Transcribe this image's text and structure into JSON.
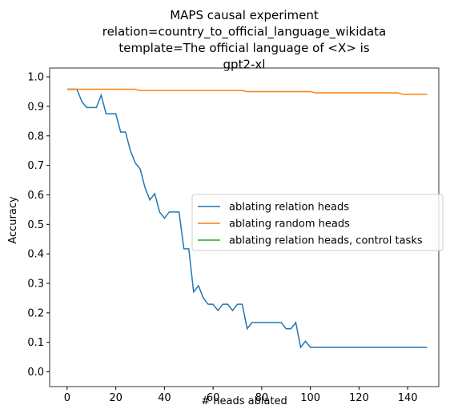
{
  "chart_data": {
    "type": "line",
    "title": [
      "MAPS causal experiment",
      "relation=country_to_official_language_wikidata",
      "template=The official language of <X> is",
      "gpt2-xl"
    ],
    "x_label": "# heads ablated",
    "y_label": "Accuracy",
    "x": [
      0,
      2,
      4,
      6,
      8,
      10,
      12,
      14,
      16,
      18,
      20,
      22,
      24,
      26,
      28,
      30,
      32,
      34,
      36,
      38,
      40,
      42,
      44,
      46,
      48,
      50,
      52,
      54,
      56,
      58,
      60,
      62,
      64,
      66,
      68,
      70,
      72,
      74,
      76,
      78,
      80,
      82,
      84,
      86,
      88,
      90,
      92,
      94,
      96,
      98,
      100,
      102,
      104,
      106,
      108,
      110,
      112,
      114,
      116,
      118,
      120,
      122,
      124,
      126,
      128,
      130,
      132,
      134,
      136,
      138,
      140,
      142,
      144,
      146,
      148
    ],
    "series": [
      {
        "name": "ablating relation heads",
        "color": "#1f77b4",
        "values": [
          0.958,
          0.958,
          0.958,
          0.917,
          0.896,
          0.896,
          0.896,
          0.938,
          0.875,
          0.875,
          0.875,
          0.813,
          0.813,
          0.75,
          0.708,
          0.688,
          0.625,
          0.583,
          0.604,
          0.542,
          0.521,
          0.542,
          0.542,
          0.542,
          0.417,
          0.417,
          0.271,
          0.292,
          0.25,
          0.229,
          0.229,
          0.208,
          0.229,
          0.229,
          0.208,
          0.229,
          0.229,
          0.146,
          0.167,
          0.167,
          0.167,
          0.167,
          0.167,
          0.167,
          0.167,
          0.146,
          0.146,
          0.167,
          0.083,
          0.104,
          0.083,
          0.083,
          0.083,
          0.083,
          0.083,
          0.083,
          0.083,
          0.083,
          0.083,
          0.083,
          0.083,
          0.083,
          0.083,
          0.083,
          0.083,
          0.083,
          0.083,
          0.083,
          0.083,
          0.083,
          0.083,
          0.083,
          0.083,
          0.083,
          0.083
        ]
      },
      {
        "name": "ablating random heads",
        "color": "#ff7f0e",
        "values": [
          0.958,
          0.958,
          0.958,
          0.958,
          0.958,
          0.958,
          0.958,
          0.958,
          0.958,
          0.958,
          0.958,
          0.958,
          0.958,
          0.958,
          0.958,
          0.954,
          0.954,
          0.954,
          0.954,
          0.954,
          0.954,
          0.954,
          0.954,
          0.954,
          0.954,
          0.954,
          0.954,
          0.954,
          0.954,
          0.954,
          0.954,
          0.954,
          0.954,
          0.954,
          0.954,
          0.954,
          0.954,
          0.95,
          0.95,
          0.95,
          0.95,
          0.95,
          0.95,
          0.95,
          0.95,
          0.95,
          0.95,
          0.95,
          0.95,
          0.95,
          0.95,
          0.946,
          0.946,
          0.946,
          0.946,
          0.946,
          0.946,
          0.946,
          0.946,
          0.946,
          0.946,
          0.946,
          0.946,
          0.946,
          0.946,
          0.946,
          0.946,
          0.946,
          0.946,
          0.941,
          0.941,
          0.941,
          0.941,
          0.941,
          0.941
        ]
      },
      {
        "name": "ablating relation heads, control tasks",
        "color": "#2ca02c",
        "values": [
          null,
          null,
          null,
          null,
          null,
          null,
          null,
          null,
          null,
          null,
          null,
          null,
          null,
          null,
          null,
          null,
          null,
          null,
          null,
          null,
          null,
          null,
          null,
          null,
          null,
          null,
          null,
          null,
          null,
          null,
          null,
          null,
          null,
          null,
          null,
          null,
          null,
          null,
          null,
          null,
          null,
          null,
          null,
          null,
          null,
          null,
          null,
          null,
          null,
          null,
          null,
          null,
          null,
          null,
          null,
          null,
          null,
          null,
          null,
          null,
          null,
          null,
          null,
          null,
          null,
          null,
          null,
          null,
          null,
          null,
          null,
          null,
          null,
          null,
          null
        ]
      }
    ],
    "xlim": [
      -7.2,
      152.8
    ],
    "ylim": [
      -0.05,
      1.03
    ],
    "xticks": [
      0,
      20,
      40,
      60,
      80,
      100,
      120,
      140
    ],
    "yticks": [
      {
        "value": 0,
        "label": "0.0"
      },
      {
        "value": 0.1,
        "label": "0.1"
      },
      {
        "value": 0.2,
        "label": "0.2"
      },
      {
        "value": 0.3,
        "label": "0.3"
      },
      {
        "value": 0.4,
        "label": "0.4"
      },
      {
        "value": 0.5,
        "label": "0.5"
      },
      {
        "value": 0.6,
        "label": "0.6"
      },
      {
        "value": 0.7,
        "label": "0.7"
      },
      {
        "value": 0.8,
        "label": "0.8"
      },
      {
        "value": 0.9,
        "label": "0.9"
      },
      {
        "value": 1.0,
        "label": "1.0"
      }
    ],
    "legend": "center right"
  }
}
